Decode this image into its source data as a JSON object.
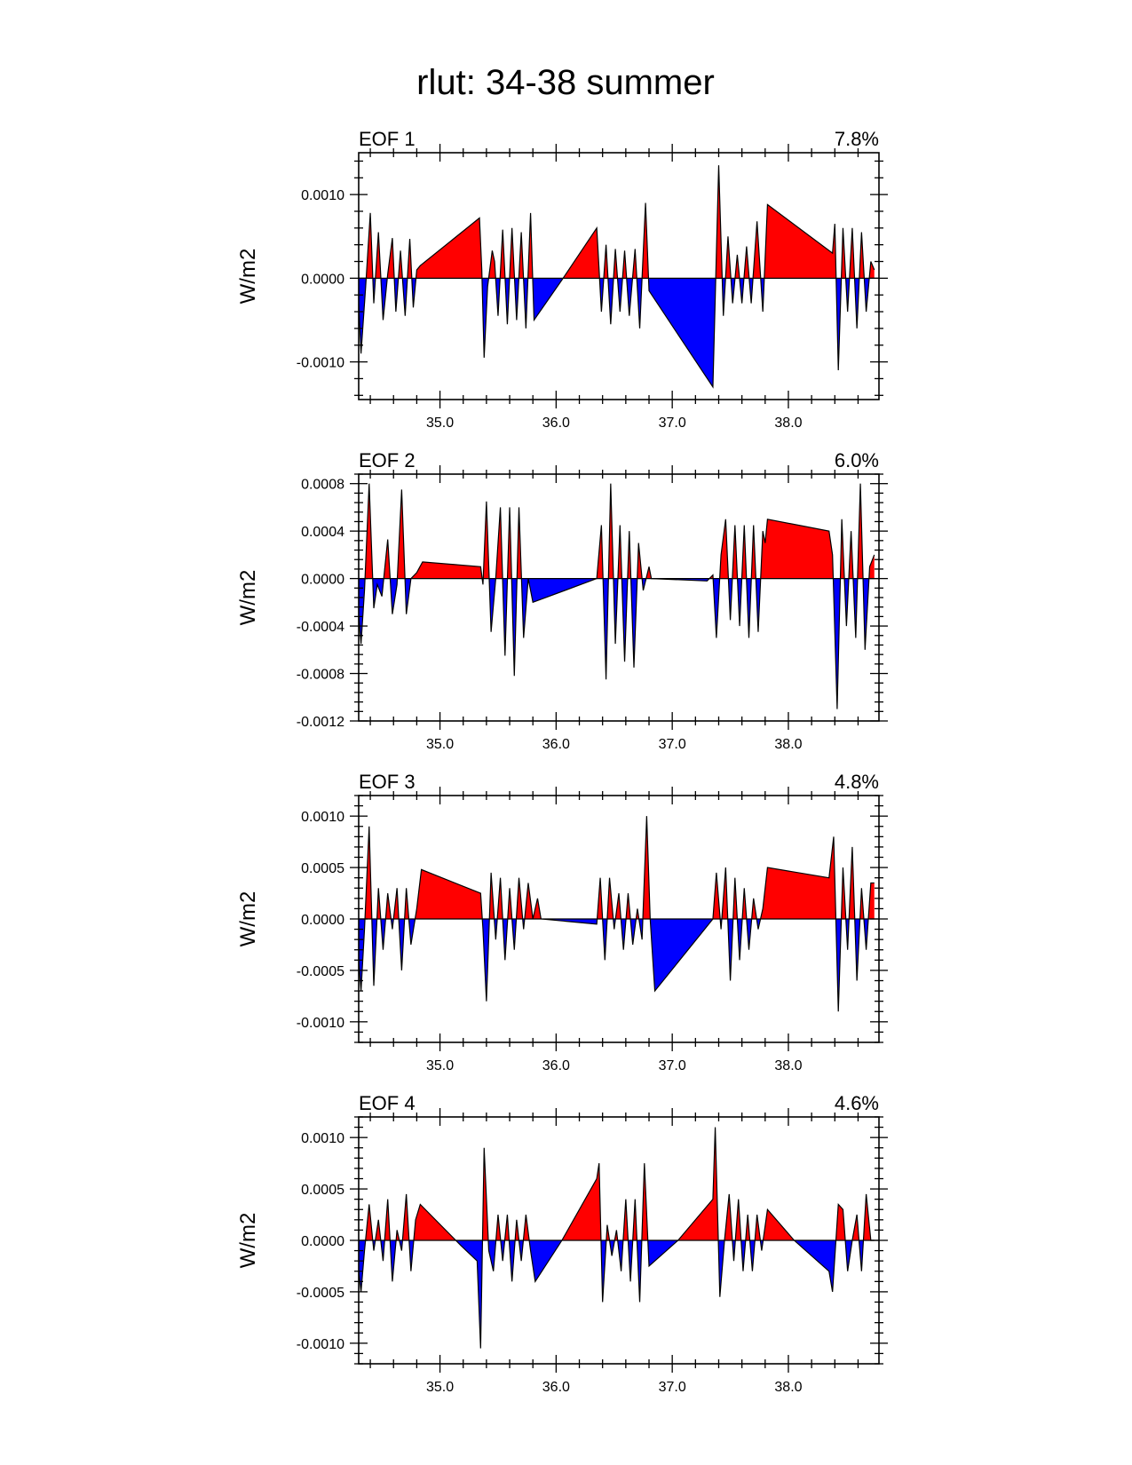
{
  "chart_data": {
    "title": "rlut: 34-38 summer",
    "type": "area",
    "ylabel": "W/m2",
    "xlim": [
      34.3,
      38.78
    ],
    "x_ticks": [
      35.0,
      36.0,
      37.0,
      38.0
    ],
    "x_tick_labels": [
      "35.0",
      "36.0",
      "37.0",
      "38.0"
    ],
    "positive_fill": "#ff0000",
    "negative_fill": "#0000ff",
    "panels": [
      {
        "label": "EOF 1",
        "percent": "7.8%",
        "ylim": [
          -0.00145,
          0.0015
        ],
        "y_ticks": [
          -0.001,
          0.0,
          0.001
        ],
        "y_tick_labels": [
          "-0.0010",
          "0.0000",
          "0.0010"
        ],
        "points": [
          [
            34.3,
            -0.0003
          ],
          [
            34.32,
            -0.0009
          ],
          [
            34.36,
            -0.0001
          ],
          [
            34.4,
            0.00078
          ],
          [
            34.43,
            -0.0003
          ],
          [
            34.47,
            0.00055
          ],
          [
            34.51,
            -0.0005
          ],
          [
            34.55,
            5e-05
          ],
          [
            34.59,
            0.00048
          ],
          [
            34.62,
            -0.0004
          ],
          [
            34.66,
            0.00033
          ],
          [
            34.7,
            -0.00045
          ],
          [
            34.74,
            0.00047
          ],
          [
            34.77,
            -0.00035
          ],
          [
            34.8,
            0.0001
          ],
          [
            34.83,
            0.00015
          ],
          [
            35.34,
            0.00072
          ],
          [
            35.36,
            0.0001
          ],
          [
            35.38,
            -0.00095
          ],
          [
            35.41,
            -0.0001
          ],
          [
            35.45,
            0.00033
          ],
          [
            35.47,
            0.0002
          ],
          [
            35.5,
            -0.00045
          ],
          [
            35.54,
            0.00058
          ],
          [
            35.58,
            -0.00055
          ],
          [
            35.62,
            0.0006
          ],
          [
            35.66,
            -0.0005
          ],
          [
            35.7,
            0.00055
          ],
          [
            35.74,
            -0.0006
          ],
          [
            35.78,
            0.00078
          ],
          [
            35.81,
            -0.0005
          ],
          [
            36.06,
            0.0
          ],
          [
            36.35,
            0.0006
          ],
          [
            36.39,
            -0.0004
          ],
          [
            36.43,
            0.0004
          ],
          [
            36.47,
            -0.00055
          ],
          [
            36.51,
            0.00035
          ],
          [
            36.55,
            -0.0004
          ],
          [
            36.59,
            0.00033
          ],
          [
            36.63,
            -0.00045
          ],
          [
            36.68,
            0.00035
          ],
          [
            36.72,
            -0.0006
          ],
          [
            36.77,
            0.0009
          ],
          [
            36.8,
            -0.00015
          ],
          [
            37.35,
            -0.0013
          ],
          [
            37.4,
            0.00135
          ],
          [
            37.44,
            -0.00045
          ],
          [
            37.48,
            0.0005
          ],
          [
            37.52,
            -0.0003
          ],
          [
            37.56,
            0.00028
          ],
          [
            37.6,
            -0.0003
          ],
          [
            37.64,
            0.00038
          ],
          [
            37.68,
            -0.0003
          ],
          [
            37.73,
            0.00068
          ],
          [
            37.78,
            -0.0004
          ],
          [
            37.82,
            0.00088
          ],
          [
            38.38,
            0.0003
          ],
          [
            38.4,
            0.00065
          ],
          [
            38.43,
            -0.0011
          ],
          [
            38.47,
            0.0006
          ],
          [
            38.51,
            -0.0004
          ],
          [
            38.55,
            0.0006
          ],
          [
            38.59,
            -0.0006
          ],
          [
            38.63,
            0.00055
          ],
          [
            38.67,
            -0.0004
          ],
          [
            38.71,
            0.0002
          ],
          [
            38.74,
            0.0001
          ]
        ]
      },
      {
        "label": "EOF 2",
        "percent": "6.0%",
        "ylim": [
          -0.0012,
          0.00088
        ],
        "y_ticks": [
          -0.0012,
          -0.0008,
          -0.0004,
          0.0,
          0.0004,
          0.0008
        ],
        "y_tick_labels": [
          "-0.0012",
          "-0.0008",
          "-0.0004",
          "0.0000",
          "0.0004",
          "0.0008"
        ],
        "points": [
          [
            34.3,
            -0.0003
          ],
          [
            34.32,
            -0.00055
          ],
          [
            34.35,
            -0.0001
          ],
          [
            34.39,
            0.0008
          ],
          [
            34.43,
            -0.00025
          ],
          [
            34.46,
            -5e-05
          ],
          [
            34.5,
            -0.00015
          ],
          [
            34.55,
            0.00033
          ],
          [
            34.59,
            -0.0003
          ],
          [
            34.63,
            -5e-05
          ],
          [
            34.67,
            0.00075
          ],
          [
            34.71,
            -0.0003
          ],
          [
            34.75,
            0.0
          ],
          [
            34.8,
            5e-05
          ],
          [
            34.85,
            0.00014
          ],
          [
            35.35,
            0.0001
          ],
          [
            35.37,
            -5e-05
          ],
          [
            35.4,
            0.00065
          ],
          [
            35.44,
            -0.00045
          ],
          [
            35.48,
            0.0
          ],
          [
            35.52,
            0.0006
          ],
          [
            35.56,
            -0.00065
          ],
          [
            35.6,
            0.0006
          ],
          [
            35.64,
            -0.00082
          ],
          [
            35.68,
            0.0006
          ],
          [
            35.72,
            -0.0005
          ],
          [
            35.76,
            0.0
          ],
          [
            35.8,
            -0.0002
          ],
          [
            36.35,
            0.0
          ],
          [
            36.39,
            0.00045
          ],
          [
            36.43,
            -0.00085
          ],
          [
            36.47,
            0.0008
          ],
          [
            36.51,
            -0.00055
          ],
          [
            36.55,
            0.00045
          ],
          [
            36.59,
            -0.0007
          ],
          [
            36.63,
            0.0004
          ],
          [
            36.67,
            -0.00075
          ],
          [
            36.71,
            0.0003
          ],
          [
            36.75,
            -0.0001
          ],
          [
            36.8,
            0.0001
          ],
          [
            36.82,
            0.0
          ],
          [
            37.3,
            -2e-05
          ],
          [
            37.35,
            3e-05
          ],
          [
            37.38,
            -0.0005
          ],
          [
            37.42,
            0.0002
          ],
          [
            37.46,
            0.0005
          ],
          [
            37.5,
            -0.00035
          ],
          [
            37.54,
            0.00045
          ],
          [
            37.58,
            -0.0004
          ],
          [
            37.62,
            0.00045
          ],
          [
            37.66,
            -0.0005
          ],
          [
            37.7,
            0.00045
          ],
          [
            37.74,
            -0.00045
          ],
          [
            37.78,
            0.0004
          ],
          [
            37.8,
            0.0003
          ],
          [
            37.82,
            0.0005
          ],
          [
            38.35,
            0.0004
          ],
          [
            38.38,
            0.0002
          ],
          [
            38.42,
            -0.0011
          ],
          [
            38.46,
            0.0005
          ],
          [
            38.5,
            -0.0004
          ],
          [
            38.54,
            0.0004
          ],
          [
            38.58,
            -0.0005
          ],
          [
            38.62,
            0.0008
          ],
          [
            38.66,
            -0.0006
          ],
          [
            38.7,
            0.0001
          ],
          [
            38.74,
            0.0002
          ]
        ]
      },
      {
        "label": "EOF 3",
        "percent": "4.8%",
        "ylim": [
          -0.0012,
          0.0012
        ],
        "y_ticks": [
          -0.001,
          -0.0005,
          0.0,
          0.0005,
          0.001
        ],
        "y_tick_labels": [
          "-0.0010",
          "-0.0005",
          "0.0000",
          "0.0005",
          "0.0010"
        ],
        "points": [
          [
            34.3,
            -0.0004
          ],
          [
            34.32,
            -0.0007
          ],
          [
            34.35,
            -0.0001
          ],
          [
            34.39,
            0.0009
          ],
          [
            34.43,
            -0.00065
          ],
          [
            34.47,
            0.0003
          ],
          [
            34.51,
            -0.0003
          ],
          [
            34.55,
            0.00025
          ],
          [
            34.59,
            -0.0001
          ],
          [
            34.63,
            0.0003
          ],
          [
            34.67,
            -0.0005
          ],
          [
            34.71,
            0.0003
          ],
          [
            34.75,
            -0.00025
          ],
          [
            34.8,
            0.0001
          ],
          [
            34.84,
            0.00048
          ],
          [
            35.35,
            0.00025
          ],
          [
            35.37,
            -0.0001
          ],
          [
            35.4,
            -0.0008
          ],
          [
            35.44,
            0.00045
          ],
          [
            35.48,
            -0.0002
          ],
          [
            35.52,
            0.0004
          ],
          [
            35.56,
            -0.0004
          ],
          [
            35.6,
            0.0003
          ],
          [
            35.64,
            -0.0003
          ],
          [
            35.68,
            0.0004
          ],
          [
            35.72,
            -0.0001
          ],
          [
            35.76,
            0.00035
          ],
          [
            35.8,
            0.0
          ],
          [
            35.84,
            0.0002
          ],
          [
            35.87,
            0.0
          ],
          [
            36.35,
            -5e-05
          ],
          [
            36.38,
            0.0004
          ],
          [
            36.42,
            -0.0004
          ],
          [
            36.46,
            0.0004
          ],
          [
            36.5,
            -0.0001
          ],
          [
            36.54,
            0.00025
          ],
          [
            36.58,
            -0.0003
          ],
          [
            36.62,
            0.00025
          ],
          [
            36.66,
            -0.00025
          ],
          [
            36.7,
            0.0001
          ],
          [
            36.74,
            -0.0002
          ],
          [
            36.78,
            0.001
          ],
          [
            36.81,
            0.0
          ],
          [
            36.85,
            -0.0007
          ],
          [
            37.35,
            0.0
          ],
          [
            37.38,
            0.00045
          ],
          [
            37.42,
            -0.0001
          ],
          [
            37.46,
            0.0005
          ],
          [
            37.5,
            -0.0006
          ],
          [
            37.54,
            0.0004
          ],
          [
            37.58,
            -0.0004
          ],
          [
            37.62,
            0.0003
          ],
          [
            37.66,
            -0.0003
          ],
          [
            37.7,
            0.0002
          ],
          [
            37.74,
            -0.0001
          ],
          [
            37.78,
            0.0001
          ],
          [
            37.82,
            0.0005
          ],
          [
            38.35,
            0.0004
          ],
          [
            38.39,
            0.0008
          ],
          [
            38.43,
            -0.0009
          ],
          [
            38.47,
            0.0005
          ],
          [
            38.51,
            -0.0003
          ],
          [
            38.55,
            0.0007
          ],
          [
            38.59,
            -0.0006
          ],
          [
            38.63,
            0.0003
          ],
          [
            38.67,
            -0.0003
          ],
          [
            38.71,
            0.00035
          ],
          [
            38.74,
            0.00035
          ]
        ]
      },
      {
        "label": "EOF 4",
        "percent": "4.6%",
        "ylim": [
          -0.0012,
          0.0012
        ],
        "y_ticks": [
          -0.001,
          -0.0005,
          0.0,
          0.0005,
          0.001
        ],
        "y_tick_labels": [
          "-0.0010",
          "-0.0005",
          "0.0000",
          "0.0005",
          "0.0010"
        ],
        "points": [
          [
            34.3,
            -0.0003
          ],
          [
            34.32,
            -0.0005
          ],
          [
            34.35,
            -0.0001
          ],
          [
            34.39,
            0.00035
          ],
          [
            34.43,
            -0.0001
          ],
          [
            34.47,
            0.0002
          ],
          [
            34.51,
            -0.0002
          ],
          [
            34.55,
            0.0004
          ],
          [
            34.59,
            -0.0004
          ],
          [
            34.63,
            0.0001
          ],
          [
            34.67,
            -0.0001
          ],
          [
            34.71,
            0.00045
          ],
          [
            34.75,
            -0.0003
          ],
          [
            34.79,
            0.0002
          ],
          [
            34.83,
            0.00035
          ],
          [
            35.18,
            -5e-05
          ],
          [
            35.32,
            -0.0002
          ],
          [
            35.35,
            -0.00105
          ],
          [
            35.38,
            0.0009
          ],
          [
            35.42,
            -0.0001
          ],
          [
            35.46,
            -0.0003
          ],
          [
            35.5,
            0.00025
          ],
          [
            35.54,
            -0.0002
          ],
          [
            35.58,
            0.00025
          ],
          [
            35.62,
            -0.0004
          ],
          [
            35.66,
            0.0002
          ],
          [
            35.7,
            -0.0002
          ],
          [
            35.74,
            0.00025
          ],
          [
            35.78,
            -0.0001
          ],
          [
            35.82,
            -0.0004
          ],
          [
            36.05,
            0.0
          ],
          [
            36.35,
            0.0006
          ],
          [
            36.37,
            0.00075
          ],
          [
            36.4,
            -0.0006
          ],
          [
            36.44,
            0.00015
          ],
          [
            36.48,
            -0.00015
          ],
          [
            36.52,
            0.0001
          ],
          [
            36.56,
            -0.0003
          ],
          [
            36.6,
            0.0004
          ],
          [
            36.64,
            -0.0004
          ],
          [
            36.68,
            0.0004
          ],
          [
            36.72,
            -0.0006
          ],
          [
            36.76,
            0.00075
          ],
          [
            36.8,
            -0.00025
          ],
          [
            37.05,
            0.0
          ],
          [
            37.35,
            0.0004
          ],
          [
            37.37,
            0.0011
          ],
          [
            37.41,
            -0.00055
          ],
          [
            37.45,
            0.0
          ],
          [
            37.49,
            0.00045
          ],
          [
            37.53,
            -0.0002
          ],
          [
            37.57,
            0.0004
          ],
          [
            37.61,
            -0.0003
          ],
          [
            37.65,
            0.00025
          ],
          [
            37.69,
            -0.0003
          ],
          [
            37.73,
            0.00025
          ],
          [
            37.77,
            -0.0001
          ],
          [
            37.82,
            0.0003
          ],
          [
            38.05,
            0.0
          ],
          [
            38.35,
            -0.0003
          ],
          [
            38.38,
            -0.0005
          ],
          [
            38.43,
            0.00035
          ],
          [
            38.47,
            0.0003
          ],
          [
            38.51,
            -0.0003
          ],
          [
            38.55,
            0.0
          ],
          [
            38.59,
            0.00025
          ],
          [
            38.63,
            -0.0003
          ],
          [
            38.67,
            0.00045
          ],
          [
            38.71,
            0.0
          ],
          [
            38.74,
            0.0
          ]
        ]
      }
    ]
  }
}
